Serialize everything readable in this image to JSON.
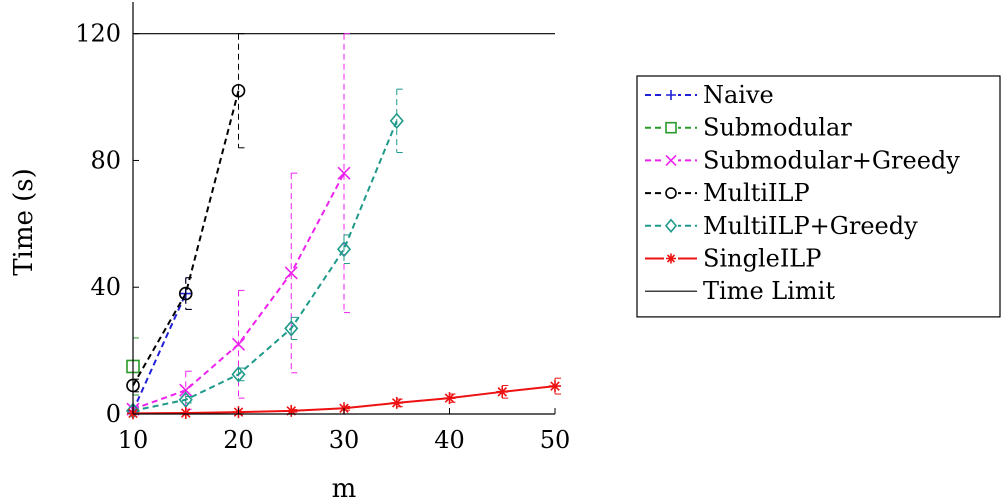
{
  "chart_data": {
    "type": "line",
    "xlabel": "m",
    "ylabel": "Time (s)",
    "xlim": [
      10,
      50
    ],
    "ylim": [
      0,
      130
    ],
    "xticks": [
      "10",
      "20",
      "30",
      "40",
      "50"
    ],
    "yticks": [
      "0",
      "40",
      "80",
      "120"
    ],
    "grid": false,
    "legend_position": "right",
    "time_limit": {
      "name": "Time Limit",
      "value": 120,
      "color": "#000000"
    },
    "series": [
      {
        "name": "Naive",
        "color": "#1f1fd6",
        "dash": "dashed",
        "marker": "plus",
        "x": [
          10,
          15
        ],
        "y": [
          1,
          38
        ],
        "err": [
          1,
          5
        ]
      },
      {
        "name": "Submodular",
        "color": "#2a9a2a",
        "dash": "dashed",
        "marker": "square",
        "x": [
          10
        ],
        "y": [
          15
        ],
        "err": [
          9
        ]
      },
      {
        "name": "Submodular+Greedy",
        "color": "#ee22ee",
        "dash": "dashed",
        "marker": "x",
        "x": [
          10,
          15,
          20,
          25,
          30
        ],
        "y": [
          1.5,
          7.5,
          22,
          44.5,
          76
        ],
        "err": [
          1,
          6,
          17,
          31.5,
          44
        ]
      },
      {
        "name": "MultiILP",
        "color": "#000000",
        "dash": "dashed",
        "marker": "circle",
        "x": [
          10,
          15,
          20
        ],
        "y": [
          9,
          38,
          102
        ],
        "err": [
          2,
          5,
          18
        ]
      },
      {
        "name": "MultiILP+Greedy",
        "color": "#1e9a8a",
        "dash": "dashed",
        "marker": "diamond",
        "x": [
          10,
          15,
          20,
          25,
          30,
          35
        ],
        "y": [
          1,
          4.5,
          12.5,
          27,
          52,
          92.5
        ],
        "err": [
          0.5,
          1,
          2,
          3.5,
          4.5,
          10
        ]
      },
      {
        "name": "SingleILP",
        "color": "#ee1111",
        "dash": "solid",
        "marker": "star",
        "x": [
          10,
          15,
          20,
          25,
          30,
          35,
          40,
          45,
          50
        ],
        "y": [
          0.2,
          0.3,
          0.6,
          1.0,
          1.8,
          3.5,
          5.0,
          7.0,
          8.8
        ],
        "err": [
          0.1,
          0.1,
          0.2,
          0.4,
          0.6,
          1.2,
          1.3,
          2.0,
          2.5
        ]
      }
    ]
  }
}
